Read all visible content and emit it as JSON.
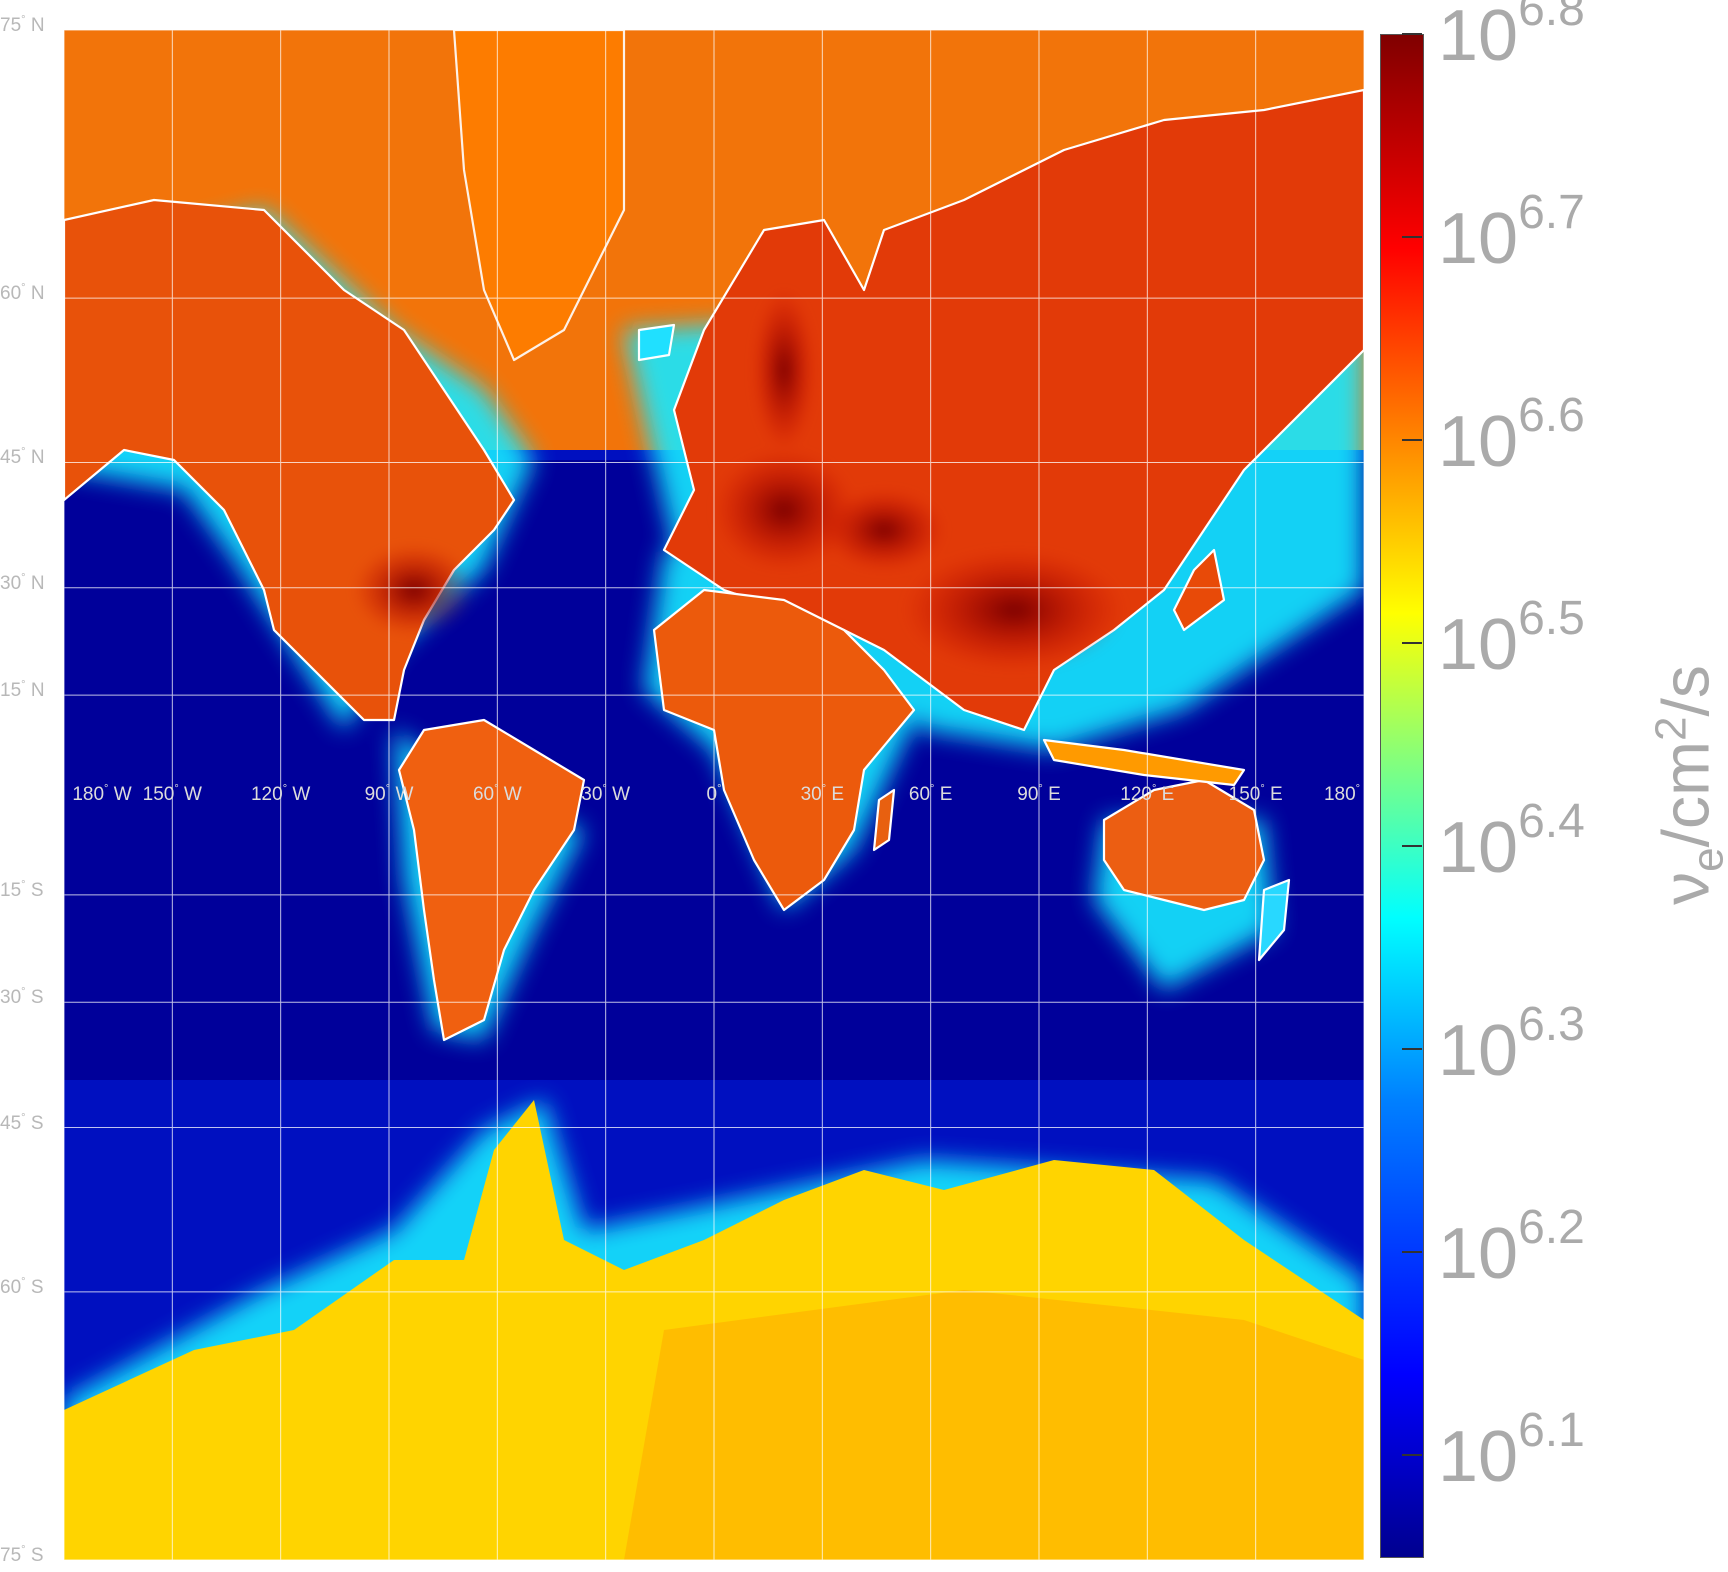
{
  "map": {
    "lat_labels": [
      {
        "lat": 75,
        "text": "75",
        "hem": "N"
      },
      {
        "lat": 60,
        "text": "60",
        "hem": "N"
      },
      {
        "lat": 45,
        "text": "45",
        "hem": "N"
      },
      {
        "lat": 30,
        "text": "30",
        "hem": "N"
      },
      {
        "lat": 15,
        "text": "15",
        "hem": "N"
      },
      {
        "lat": -15,
        "text": "15",
        "hem": "S"
      },
      {
        "lat": -30,
        "text": "30",
        "hem": "S"
      },
      {
        "lat": -45,
        "text": "45",
        "hem": "S"
      },
      {
        "lat": -60,
        "text": "60",
        "hem": "S"
      },
      {
        "lat": -75,
        "text": "75",
        "hem": "S"
      }
    ],
    "lon_labels": [
      {
        "lon": -180,
        "text": "180",
        "hem": "W"
      },
      {
        "lon": -150,
        "text": "150",
        "hem": "W"
      },
      {
        "lon": -120,
        "text": "120",
        "hem": "W"
      },
      {
        "lon": -90,
        "text": "90",
        "hem": "W"
      },
      {
        "lon": -60,
        "text": "60",
        "hem": "W"
      },
      {
        "lon": -30,
        "text": "30",
        "hem": "W"
      },
      {
        "lon": 0,
        "text": "0",
        "hem": ""
      },
      {
        "lon": 30,
        "text": "30",
        "hem": "E"
      },
      {
        "lon": 60,
        "text": "60",
        "hem": "E"
      },
      {
        "lon": 90,
        "text": "90",
        "hem": "E"
      },
      {
        "lon": 120,
        "text": "120",
        "hem": "E"
      },
      {
        "lon": 150,
        "text": "150",
        "hem": "E"
      },
      {
        "lon": 180,
        "text": "180",
        "hem": ""
      }
    ],
    "colors": {
      "ocean_min": "#00008f",
      "graticule": "#ffffff",
      "coastline": "#ffffff"
    }
  },
  "colorbar": {
    "title_symbol": "ν",
    "title_subscript": "e",
    "title_unit_base": "/cm",
    "title_unit_exp": "2",
    "title_unit_tail": "/s",
    "ticks": [
      {
        "value": 6.1,
        "base": "10",
        "exp": "6.1"
      },
      {
        "value": 6.2,
        "base": "10",
        "exp": "6.2"
      },
      {
        "value": 6.3,
        "base": "10",
        "exp": "6.3"
      },
      {
        "value": 6.4,
        "base": "10",
        "exp": "6.4"
      },
      {
        "value": 6.5,
        "base": "10",
        "exp": "6.5"
      },
      {
        "value": 6.6,
        "base": "10",
        "exp": "6.6"
      },
      {
        "value": 6.7,
        "base": "10",
        "exp": "6.7"
      },
      {
        "value": 6.8,
        "base": "10",
        "exp": "6.8"
      }
    ],
    "range": [
      6.05,
      6.8
    ],
    "colormap": "jet"
  }
}
